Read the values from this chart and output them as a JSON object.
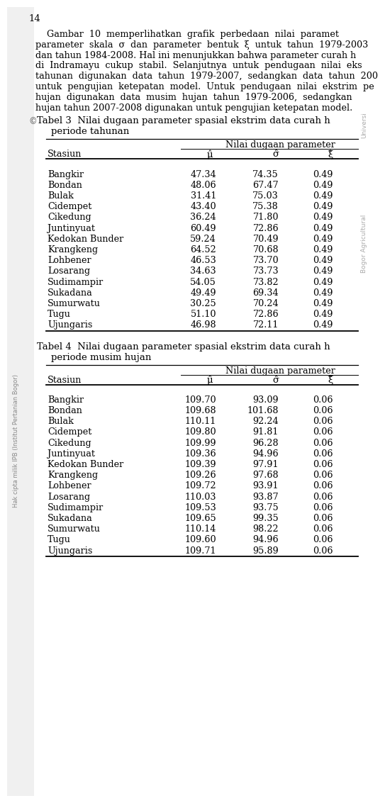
{
  "page_number": "14",
  "para_lines": [
    "    Gambar  10  memperlihatkan  grafik  perbedaan  nilai  parameter",
    "parameter  skala  σ  dan  parameter  bentuk  ξ  untuk  tahun  1979-2003,",
    "dan tahun 1984-2008. Hal ini menunjukkan bahwa parameter curah h",
    "di  Indramayu  cukup  stabil.  Selanjutnya  untuk  pendugaan  nilai  eks",
    "tahunan  digunakan  data  tahun  1979-2007,  sedangkan  data  tahun  200",
    "untuk  pengujian  ketepatan  model.  Untuk  pendugaan  nilai  ekstrim  pe",
    "hujan  digunakan  data  musim  hujan  tahun  1979-2006,  sedangkan",
    "hujan tahun 2007-2008 digunakan untuk pengujian ketepatan model."
  ],
  "table3_title_line1": "Tabel 3  Nilai dugaan parameter spasial ekstrim data curah h",
  "table3_title_line2": "periode tahunan",
  "table3_header_group": "Nilai dugaan parameter",
  "table3_rows": [
    [
      "Bangkir",
      "47.34",
      "74.35",
      "0.49"
    ],
    [
      "Bondan",
      "48.06",
      "67.47",
      "0.49"
    ],
    [
      "Bulak",
      "31.41",
      "75.03",
      "0.49"
    ],
    [
      "Cidempet",
      "43.40",
      "75.38",
      "0.49"
    ],
    [
      "Cikedung",
      "36.24",
      "71.80",
      "0.49"
    ],
    [
      "Juntinyuat",
      "60.49",
      "72.86",
      "0.49"
    ],
    [
      "Kedokan Bunder",
      "59.24",
      "70.49",
      "0.49"
    ],
    [
      "Krangkeng",
      "64.52",
      "70.68",
      "0.49"
    ],
    [
      "Lohbener",
      "46.53",
      "73.70",
      "0.49"
    ],
    [
      "Losarang",
      "34.63",
      "73.73",
      "0.49"
    ],
    [
      "Sudimampir",
      "54.05",
      "73.82",
      "0.49"
    ],
    [
      "Sukadana",
      "49.49",
      "69.34",
      "0.49"
    ],
    [
      "Sumurwatu",
      "30.25",
      "70.24",
      "0.49"
    ],
    [
      "Tugu",
      "51.10",
      "72.86",
      "0.49"
    ],
    [
      "Ujungaris",
      "46.98",
      "72.11",
      "0.49"
    ]
  ],
  "table4_title_line1": "Tabel 4  Nilai dugaan parameter spasial ekstrim data curah h",
  "table4_title_line2": "periode musim hujan",
  "table4_header_group": "Nilai dugaan parameter",
  "table4_rows": [
    [
      "Bangkir",
      "109.70",
      "93.09",
      "0.06"
    ],
    [
      "Bondan",
      "109.68",
      "101.68",
      "0.06"
    ],
    [
      "Bulak",
      "110.11",
      "92.24",
      "0.06"
    ],
    [
      "Cidempet",
      "109.80",
      "91.81",
      "0.06"
    ],
    [
      "Cikedung",
      "109.99",
      "96.28",
      "0.06"
    ],
    [
      "Juntinyuat",
      "109.36",
      "94.96",
      "0.06"
    ],
    [
      "Kedokan Bunder",
      "109.39",
      "97.91",
      "0.06"
    ],
    [
      "Krangkeng",
      "109.26",
      "97.68",
      "0.06"
    ],
    [
      "Lohbener",
      "109.72",
      "93.91",
      "0.06"
    ],
    [
      "Losarang",
      "110.03",
      "93.87",
      "0.06"
    ],
    [
      "Sudimampir",
      "109.53",
      "93.75",
      "0.06"
    ],
    [
      "Sukadana",
      "109.65",
      "99.35",
      "0.06"
    ],
    [
      "Sumurwatu",
      "110.14",
      "98.22",
      "0.06"
    ],
    [
      "Tugu",
      "109.60",
      "94.96",
      "0.06"
    ],
    [
      "Ujungaris",
      "109.71",
      "95.89",
      "0.06"
    ]
  ],
  "bg_color": "#ffffff",
  "watermark_left": "Hak cipta milik IPB (Institut Pertanian Bogor)",
  "watermark_right_top": "Bogor Agricultural",
  "watermark_right_bot": "Universi"
}
